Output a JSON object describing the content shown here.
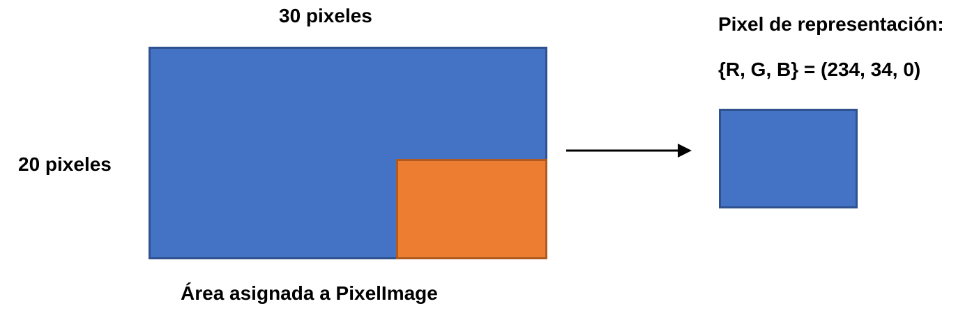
{
  "labels": {
    "width": "30 pixeles",
    "height": "20 pixeles",
    "caption": "Área asignada a PixelImage",
    "pixel_title": "Pixel de representación:",
    "rgb": "{R, G, B} = (234, 34, 0)"
  },
  "colors": {
    "area_fill": "#4472C4",
    "area_border": "#2F528F",
    "sub_fill": "#ED7D31",
    "sub_border": "#AE5A21",
    "pixel_fill": "#4472C4",
    "pixel_border": "#2F528F",
    "arrow": "#000000"
  },
  "icons": {
    "arrow": "arrow-right-icon"
  }
}
